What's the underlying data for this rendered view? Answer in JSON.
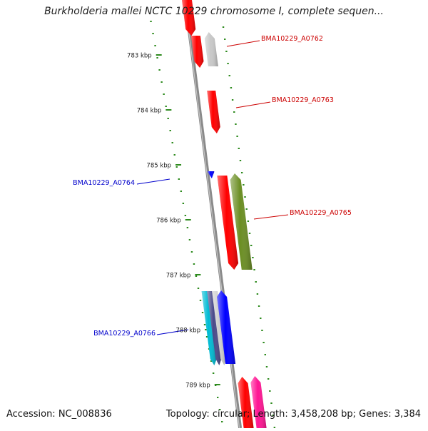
{
  "title": "Burkholderia mallei NCTC 10229 chromosome I, complete sequen...",
  "accession": "Accession: NC_008836",
  "summary": "Topology: circular; Length: 3,458,208 bp; Genes: 3,384",
  "colors": {
    "tick": "#2e8b1e",
    "backbone": "#8a8a8a",
    "forward_label": "#cc0000",
    "reverse_label": "#0000cc"
  },
  "scale_labels": [
    "783 kbp",
    "784 kbp",
    "785 kbp",
    "786 kbp",
    "787 kbp",
    "788 kbp",
    "789 kbp"
  ],
  "gene_labels": [
    {
      "name": "BMA10229_A0762",
      "strand": "forward"
    },
    {
      "name": "BMA10229_A0763",
      "strand": "forward"
    },
    {
      "name": "BMA10229_A0764",
      "strand": "reverse"
    },
    {
      "name": "BMA10229_A0765",
      "strand": "forward"
    },
    {
      "name": "BMA10229_A0766",
      "strand": "reverse"
    }
  ],
  "genes": [
    {
      "color": "#ff0000",
      "strand": "-"
    },
    {
      "color": "#ff0000",
      "strand": "-"
    },
    {
      "color": "#c8c8c8",
      "strand": "+"
    },
    {
      "color": "#ff0000",
      "strand": "-"
    },
    {
      "color": "#0000ff",
      "strand": "-"
    },
    {
      "color": "#ff0000",
      "strand": "-"
    },
    {
      "color": "#6b8e23",
      "strand": "+"
    },
    {
      "color": "#00bcd4",
      "strand": "-"
    },
    {
      "color": "#4a4a8a",
      "strand": "-"
    },
    {
      "color": "#d0d0d0",
      "strand": "-"
    },
    {
      "color": "#0000ff",
      "strand": "+"
    },
    {
      "color": "#ff0000",
      "strand": "+"
    },
    {
      "color": "#ff1493",
      "strand": "+"
    }
  ]
}
